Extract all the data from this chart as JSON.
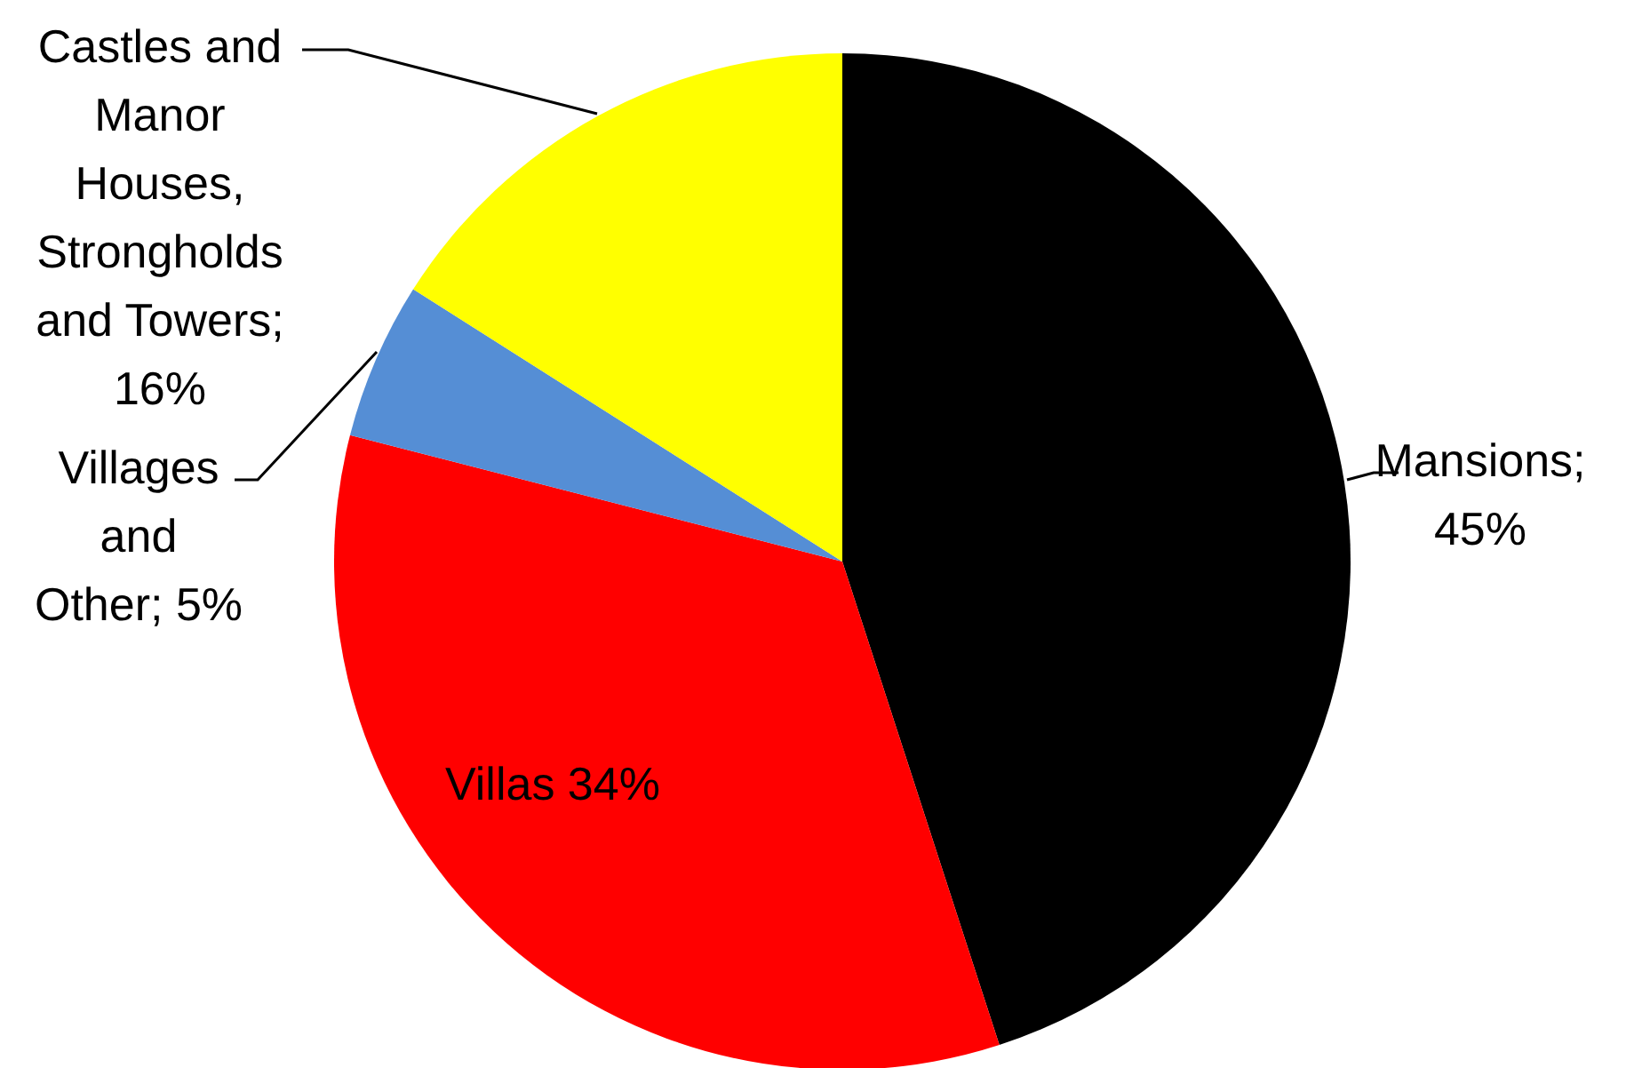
{
  "chart_data": {
    "type": "pie",
    "categories": [
      "Mansions",
      "Villas",
      "Villages and Other",
      "Castles and Manor Houses, Strongholds and Towers"
    ],
    "value_labels": [
      "; 45%",
      "34%",
      "; 5%",
      "; 16%"
    ],
    "values": [
      45,
      34,
      5,
      16
    ],
    "colors": [
      "#000000",
      "#ff0000",
      "#558ed5",
      "#ffff00"
    ]
  }
}
